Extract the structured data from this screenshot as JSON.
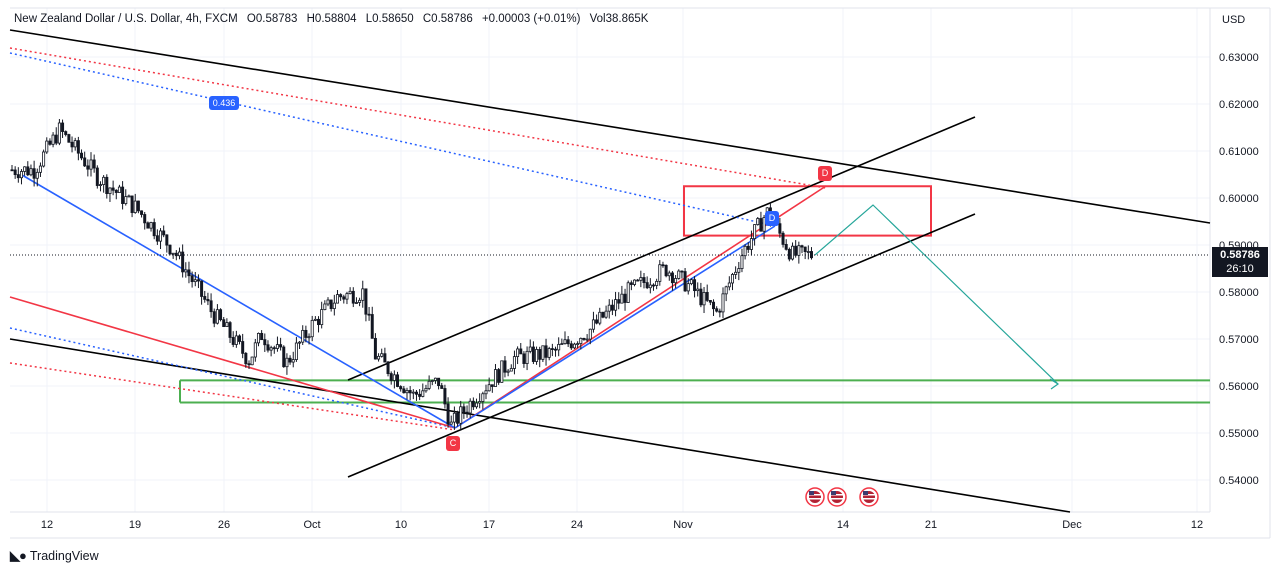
{
  "header": {
    "symbol": "New Zealand Dollar / U.S. Dollar, 4h, FXCM",
    "open": "O0.58783",
    "high": "H0.58804",
    "low": "L0.58650",
    "close": "C0.58786",
    "change": "+0.00003 (+0.01%)",
    "volume": "Vol38.865K"
  },
  "currency": "USD",
  "last_price": "0.58786",
  "countdown": "26:10",
  "fib_label": "0.436",
  "markers": {
    "c": "C",
    "d": "D"
  },
  "logo_text": "TradingView",
  "colors": {
    "up": "#131722",
    "black_lines": "#000000",
    "blue": "#2962ff",
    "red": "#f23645",
    "green": "#4caf50",
    "teal": "#26a69a"
  },
  "chart_data": {
    "type": "candlestick",
    "title": "New Zealand Dollar / U.S. Dollar, 4h, FXCM",
    "y_ticks": [
      "0.63000",
      "0.62000",
      "0.61000",
      "0.60000",
      "0.59000",
      "0.58000",
      "0.57000",
      "0.56000",
      "0.55000",
      "0.54000"
    ],
    "y_range": [
      0.5345,
      0.6385
    ],
    "x_ticks": [
      "12",
      "19",
      "26",
      "Oct",
      "10",
      "17",
      "24",
      "Nov",
      "14",
      "21",
      "Dec",
      "12"
    ],
    "price_path": [
      {
        "date": "Sep 11",
        "price": 0.606
      },
      {
        "date": "Sep 13",
        "price": 0.6145
      },
      {
        "date": "Sep 16",
        "price": 0.6045
      },
      {
        "date": "Sep 19",
        "price": 0.598
      },
      {
        "date": "Sep 22",
        "price": 0.589
      },
      {
        "date": "Sep 25",
        "price": 0.576
      },
      {
        "date": "Sep 28",
        "price": 0.5655
      },
      {
        "date": "Sep 29",
        "price": 0.571
      },
      {
        "date": "Oct 1",
        "price": 0.565
      },
      {
        "date": "Oct 3",
        "price": 0.573
      },
      {
        "date": "Oct 5",
        "price": 0.579
      },
      {
        "date": "Oct 7",
        "price": 0.58
      },
      {
        "date": "Oct 8",
        "price": 0.5665
      },
      {
        "date": "Oct 11",
        "price": 0.558
      },
      {
        "date": "Oct 13",
        "price": 0.561
      },
      {
        "date": "Oct 14",
        "price": 0.5515
      },
      {
        "date": "Oct 16",
        "price": 0.558
      },
      {
        "date": "Oct 19",
        "price": 0.566
      },
      {
        "date": "Oct 22",
        "price": 0.567
      },
      {
        "date": "Oct 25",
        "price": 0.572
      },
      {
        "date": "Oct 28",
        "price": 0.58
      },
      {
        "date": "Oct 31",
        "price": 0.585
      },
      {
        "date": "Nov 2",
        "price": 0.581
      },
      {
        "date": "Nov 4",
        "price": 0.5755
      },
      {
        "date": "Nov 6",
        "price": 0.588
      },
      {
        "date": "Nov 8",
        "price": 0.597
      },
      {
        "date": "Nov 10",
        "price": 0.5879
      }
    ],
    "horizontal_levels": [
      {
        "name": "resistance zone",
        "type": "box",
        "y_top": 0.6025,
        "y_bottom": 0.592,
        "color": "#f23645"
      },
      {
        "name": "support zone",
        "type": "box",
        "y_top": 0.5612,
        "y_bottom": 0.5565,
        "color": "#4caf50"
      }
    ],
    "fib_value": 0.436,
    "last_price": 0.58786
  }
}
